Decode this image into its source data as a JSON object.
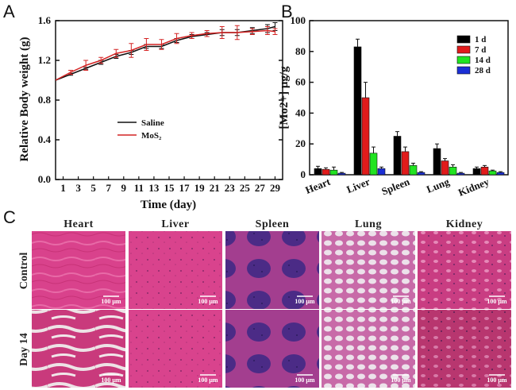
{
  "figure": {
    "panels": [
      "A",
      "B",
      "C"
    ]
  },
  "chart_data": [
    {
      "type": "line",
      "panel": "A",
      "xlabel": "Time (day)",
      "ylabel": "Relative Body weight (g)",
      "xlim": [
        0,
        30
      ],
      "ylim": [
        0.0,
        1.6
      ],
      "xticks": [
        1,
        3,
        5,
        7,
        9,
        11,
        13,
        15,
        17,
        19,
        21,
        23,
        25,
        27,
        29
      ],
      "yticks": [
        0.0,
        0.4,
        0.8,
        1.2,
        1.6
      ],
      "x": [
        0,
        2,
        4,
        6,
        8,
        10,
        12,
        14,
        16,
        18,
        20,
        22,
        24,
        26,
        28,
        29
      ],
      "series": [
        {
          "name": "Saline",
          "color": "#111111",
          "values": [
            1.0,
            1.06,
            1.12,
            1.18,
            1.24,
            1.28,
            1.34,
            1.34,
            1.4,
            1.44,
            1.46,
            1.48,
            1.48,
            1.5,
            1.52,
            1.54
          ],
          "errors": [
            0,
            0.01,
            0.01,
            0.02,
            0.02,
            0.02,
            0.02,
            0.02,
            0.02,
            0.02,
            0.02,
            0.03,
            0.03,
            0.03,
            0.04,
            0.04
          ]
        },
        {
          "name": "MoS₂",
          "color": "#d42424",
          "values": [
            1.0,
            1.08,
            1.15,
            1.2,
            1.27,
            1.3,
            1.36,
            1.36,
            1.42,
            1.45,
            1.47,
            1.48,
            1.48,
            1.49,
            1.5,
            1.49
          ],
          "errors": [
            0,
            0.02,
            0.05,
            0.03,
            0.04,
            0.07,
            0.06,
            0.05,
            0.05,
            0.03,
            0.03,
            0.06,
            0.07,
            0.03,
            0.04,
            0.03
          ]
        }
      ],
      "legend": "center-left"
    },
    {
      "type": "bar",
      "panel": "B",
      "ylabel": "[Mo2+] μg/g",
      "ylim": [
        0,
        100
      ],
      "yticks": [
        0,
        20,
        40,
        60,
        80,
        100
      ],
      "categories": [
        "Heart",
        "Liver",
        "Spleen",
        "Lung",
        "Kidney"
      ],
      "series": [
        {
          "name": "1 d",
          "color": "#000000",
          "values": [
            4,
            83,
            25,
            17,
            4
          ],
          "errors": [
            1.5,
            5,
            3,
            3,
            1
          ]
        },
        {
          "name": "7 d",
          "color": "#e11b1b",
          "values": [
            3.5,
            50,
            15,
            9,
            5
          ],
          "errors": [
            1,
            10,
            3,
            1.5,
            1
          ]
        },
        {
          "name": "14 d",
          "color": "#21e421",
          "values": [
            3,
            14,
            6,
            5,
            2.5
          ],
          "errors": [
            2,
            4,
            1.5,
            1.5,
            0.5
          ]
        },
        {
          "name": "28 d",
          "color": "#1b2fd6",
          "values": [
            1,
            4,
            1.5,
            1,
            1.5
          ],
          "errors": [
            0.5,
            1,
            0.5,
            0.5,
            0.5
          ]
        }
      ],
      "legend": "top-right"
    }
  ],
  "histology": {
    "columns": [
      "Heart",
      "Liver",
      "Spleen",
      "Lung",
      "Kidney"
    ],
    "rows": [
      "Control",
      "Day 14"
    ],
    "scale_label": "100 μm"
  }
}
